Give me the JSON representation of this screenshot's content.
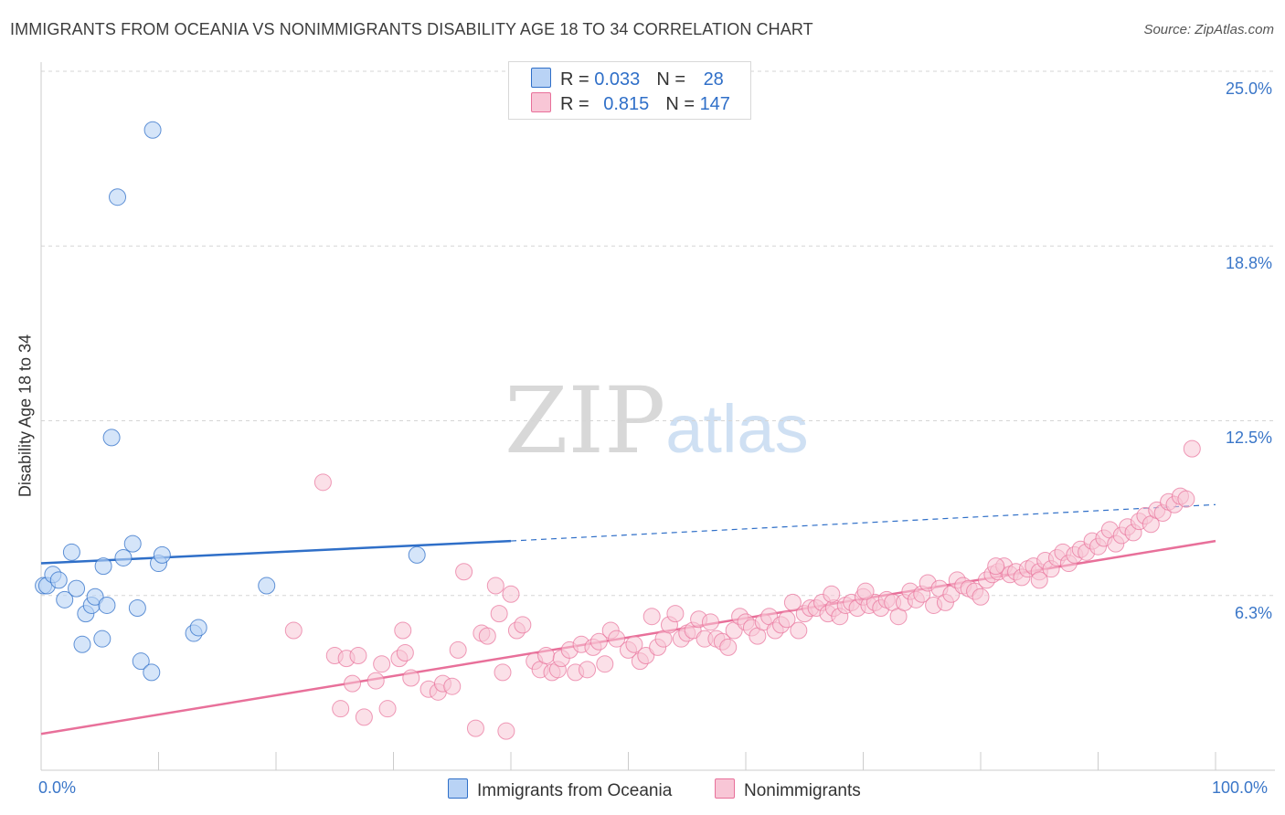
{
  "title": "IMMIGRANTS FROM OCEANIA VS NONIMMIGRANTS DISABILITY AGE 18 TO 34 CORRELATION CHART",
  "source": "Source: ZipAtlas.com",
  "watermark": {
    "zip": "ZIP",
    "atlas": "atlas"
  },
  "legend": {
    "row1": {
      "r_label": "R = ",
      "r_value": "0.033",
      "n_label": "N = ",
      "n_value": "28"
    },
    "row2": {
      "r_label": "R = ",
      "r_value": "0.815",
      "n_label": "N = ",
      "n_value": "147"
    }
  },
  "bottom_legend": {
    "series1": "Immigrants from Oceania",
    "series2": "Nonimmigrants"
  },
  "y_axis_title": "Disability Age 18 to 34",
  "y_ticks": [
    "25.0%",
    "18.8%",
    "12.5%",
    "6.3%"
  ],
  "x_ticks": [
    "0.0%",
    "100.0%"
  ],
  "colors": {
    "blue": "#2f6fc8",
    "blue_fill": "#b9d3f5",
    "pink": "#e8709a",
    "pink_fill": "#f8c6d6",
    "label": "#3a76c8"
  },
  "chart_data": {
    "type": "scatter",
    "title": "IMMIGRANTS FROM OCEANIA VS NONIMMIGRANTS DISABILITY AGE 18 TO 34 CORRELATION CHART",
    "xlabel": "",
    "ylabel": "Disability Age 18 to 34",
    "xlim": [
      0,
      100
    ],
    "ylim": [
      0,
      25.8
    ],
    "grid": "horizontal dashed",
    "series": [
      {
        "name": "Immigrants from Oceania",
        "r": 0.033,
        "n": 28,
        "trend": {
          "x": [
            0,
            40,
            100
          ],
          "y": [
            7.4,
            8.2,
            9.5
          ],
          "solid_until": 40
        },
        "points": [
          [
            0.2,
            6.6
          ],
          [
            0.5,
            6.6
          ],
          [
            1.0,
            7.0
          ],
          [
            1.5,
            6.8
          ],
          [
            2.0,
            6.1
          ],
          [
            2.6,
            7.8
          ],
          [
            3.0,
            6.5
          ],
          [
            3.5,
            4.5
          ],
          [
            3.8,
            5.6
          ],
          [
            4.3,
            5.9
          ],
          [
            4.6,
            6.2
          ],
          [
            5.2,
            4.7
          ],
          [
            5.3,
            7.3
          ],
          [
            5.6,
            5.9
          ],
          [
            6.0,
            11.9
          ],
          [
            6.5,
            20.5
          ],
          [
            7.0,
            7.6
          ],
          [
            7.8,
            8.1
          ],
          [
            8.2,
            5.8
          ],
          [
            8.5,
            3.9
          ],
          [
            9.4,
            3.5
          ],
          [
            9.5,
            22.9
          ],
          [
            10.0,
            7.4
          ],
          [
            10.3,
            7.7
          ],
          [
            13.0,
            4.9
          ],
          [
            13.4,
            5.1
          ],
          [
            19.2,
            6.6
          ],
          [
            32.0,
            7.7
          ]
        ]
      },
      {
        "name": "Nonimmigrants",
        "r": 0.815,
        "n": 147,
        "trend": {
          "x": [
            0,
            100
          ],
          "y": [
            1.3,
            8.2
          ]
        },
        "points": [
          [
            21.5,
            5.0
          ],
          [
            24.0,
            10.3
          ],
          [
            25.0,
            4.1
          ],
          [
            25.5,
            2.2
          ],
          [
            26.0,
            4.0
          ],
          [
            26.5,
            3.1
          ],
          [
            27.0,
            4.1
          ],
          [
            27.5,
            1.9
          ],
          [
            28.5,
            3.2
          ],
          [
            29.0,
            3.8
          ],
          [
            29.5,
            2.2
          ],
          [
            30.5,
            4.0
          ],
          [
            30.8,
            5.0
          ],
          [
            31.0,
            4.2
          ],
          [
            31.5,
            3.3
          ],
          [
            33.0,
            2.9
          ],
          [
            33.8,
            2.8
          ],
          [
            34.2,
            3.1
          ],
          [
            35.0,
            3.0
          ],
          [
            35.5,
            4.3
          ],
          [
            36.0,
            7.1
          ],
          [
            37.0,
            1.5
          ],
          [
            37.5,
            4.9
          ],
          [
            38.0,
            4.8
          ],
          [
            38.7,
            6.6
          ],
          [
            39.0,
            5.6
          ],
          [
            39.3,
            3.5
          ],
          [
            39.6,
            1.4
          ],
          [
            40.0,
            6.3
          ],
          [
            40.5,
            5.0
          ],
          [
            41.0,
            5.2
          ],
          [
            42.0,
            3.9
          ],
          [
            42.5,
            3.6
          ],
          [
            43.0,
            4.1
          ],
          [
            43.5,
            3.5
          ],
          [
            44.0,
            3.6
          ],
          [
            44.3,
            4.0
          ],
          [
            45.0,
            4.3
          ],
          [
            45.5,
            3.5
          ],
          [
            46.0,
            4.5
          ],
          [
            46.5,
            3.6
          ],
          [
            47.0,
            4.4
          ],
          [
            47.5,
            4.6
          ],
          [
            48.0,
            3.8
          ],
          [
            48.5,
            5.0
          ],
          [
            49.0,
            4.7
          ],
          [
            50.0,
            4.3
          ],
          [
            50.5,
            4.5
          ],
          [
            51.0,
            3.9
          ],
          [
            51.5,
            4.1
          ],
          [
            52.0,
            5.5
          ],
          [
            52.5,
            4.4
          ],
          [
            53.0,
            4.7
          ],
          [
            53.5,
            5.2
          ],
          [
            54.0,
            5.6
          ],
          [
            54.5,
            4.7
          ],
          [
            55.0,
            4.9
          ],
          [
            55.5,
            5.0
          ],
          [
            56.0,
            5.4
          ],
          [
            56.5,
            4.7
          ],
          [
            57.0,
            5.3
          ],
          [
            57.5,
            4.7
          ],
          [
            58.0,
            4.6
          ],
          [
            58.5,
            4.4
          ],
          [
            59.0,
            5.0
          ],
          [
            59.5,
            5.5
          ],
          [
            60.0,
            5.3
          ],
          [
            60.5,
            5.1
          ],
          [
            61.0,
            4.8
          ],
          [
            61.5,
            5.3
          ],
          [
            62.0,
            5.5
          ],
          [
            62.5,
            5.0
          ],
          [
            63.0,
            5.2
          ],
          [
            63.5,
            5.4
          ],
          [
            64.0,
            6.0
          ],
          [
            64.5,
            5.0
          ],
          [
            65.0,
            5.6
          ],
          [
            65.5,
            5.8
          ],
          [
            66.0,
            5.8
          ],
          [
            66.5,
            6.0
          ],
          [
            67.0,
            5.6
          ],
          [
            67.5,
            5.8
          ],
          [
            68.0,
            5.5
          ],
          [
            68.5,
            5.9
          ],
          [
            69.0,
            6.0
          ],
          [
            69.5,
            5.8
          ],
          [
            70.0,
            6.2
          ],
          [
            70.5,
            5.9
          ],
          [
            71.0,
            6.0
          ],
          [
            71.5,
            5.8
          ],
          [
            72.0,
            6.1
          ],
          [
            72.5,
            6.0
          ],
          [
            73.0,
            5.5
          ],
          [
            73.5,
            6.0
          ],
          [
            74.0,
            6.4
          ],
          [
            74.5,
            6.1
          ],
          [
            75.0,
            6.3
          ],
          [
            75.5,
            6.7
          ],
          [
            76.0,
            5.9
          ],
          [
            76.5,
            6.5
          ],
          [
            77.0,
            6.0
          ],
          [
            77.5,
            6.3
          ],
          [
            78.0,
            6.8
          ],
          [
            78.5,
            6.6
          ],
          [
            79.0,
            6.5
          ],
          [
            79.5,
            6.4
          ],
          [
            80.0,
            6.2
          ],
          [
            80.5,
            6.8
          ],
          [
            81.0,
            7.0
          ],
          [
            81.5,
            7.1
          ],
          [
            82.0,
            7.3
          ],
          [
            82.5,
            7.0
          ],
          [
            83.0,
            7.1
          ],
          [
            83.5,
            6.9
          ],
          [
            84.0,
            7.2
          ],
          [
            84.5,
            7.3
          ],
          [
            85.0,
            7.1
          ],
          [
            85.5,
            7.5
          ],
          [
            86.0,
            7.2
          ],
          [
            86.5,
            7.6
          ],
          [
            87.0,
            7.8
          ],
          [
            87.5,
            7.4
          ],
          [
            88.0,
            7.7
          ],
          [
            88.5,
            7.9
          ],
          [
            89.0,
            7.8
          ],
          [
            89.5,
            8.2
          ],
          [
            90.0,
            8.0
          ],
          [
            90.5,
            8.3
          ],
          [
            91.0,
            8.6
          ],
          [
            91.5,
            8.1
          ],
          [
            92.0,
            8.4
          ],
          [
            92.5,
            8.7
          ],
          [
            93.0,
            8.5
          ],
          [
            93.5,
            8.9
          ],
          [
            94.0,
            9.1
          ],
          [
            94.5,
            8.8
          ],
          [
            95.0,
            9.3
          ],
          [
            95.5,
            9.2
          ],
          [
            96.0,
            9.6
          ],
          [
            96.5,
            9.5
          ],
          [
            97.0,
            9.8
          ],
          [
            97.5,
            9.7
          ],
          [
            98.0,
            11.5
          ],
          [
            81.3,
            7.3
          ],
          [
            85.0,
            6.8
          ],
          [
            70.2,
            6.4
          ],
          [
            67.3,
            6.3
          ]
        ]
      }
    ]
  }
}
